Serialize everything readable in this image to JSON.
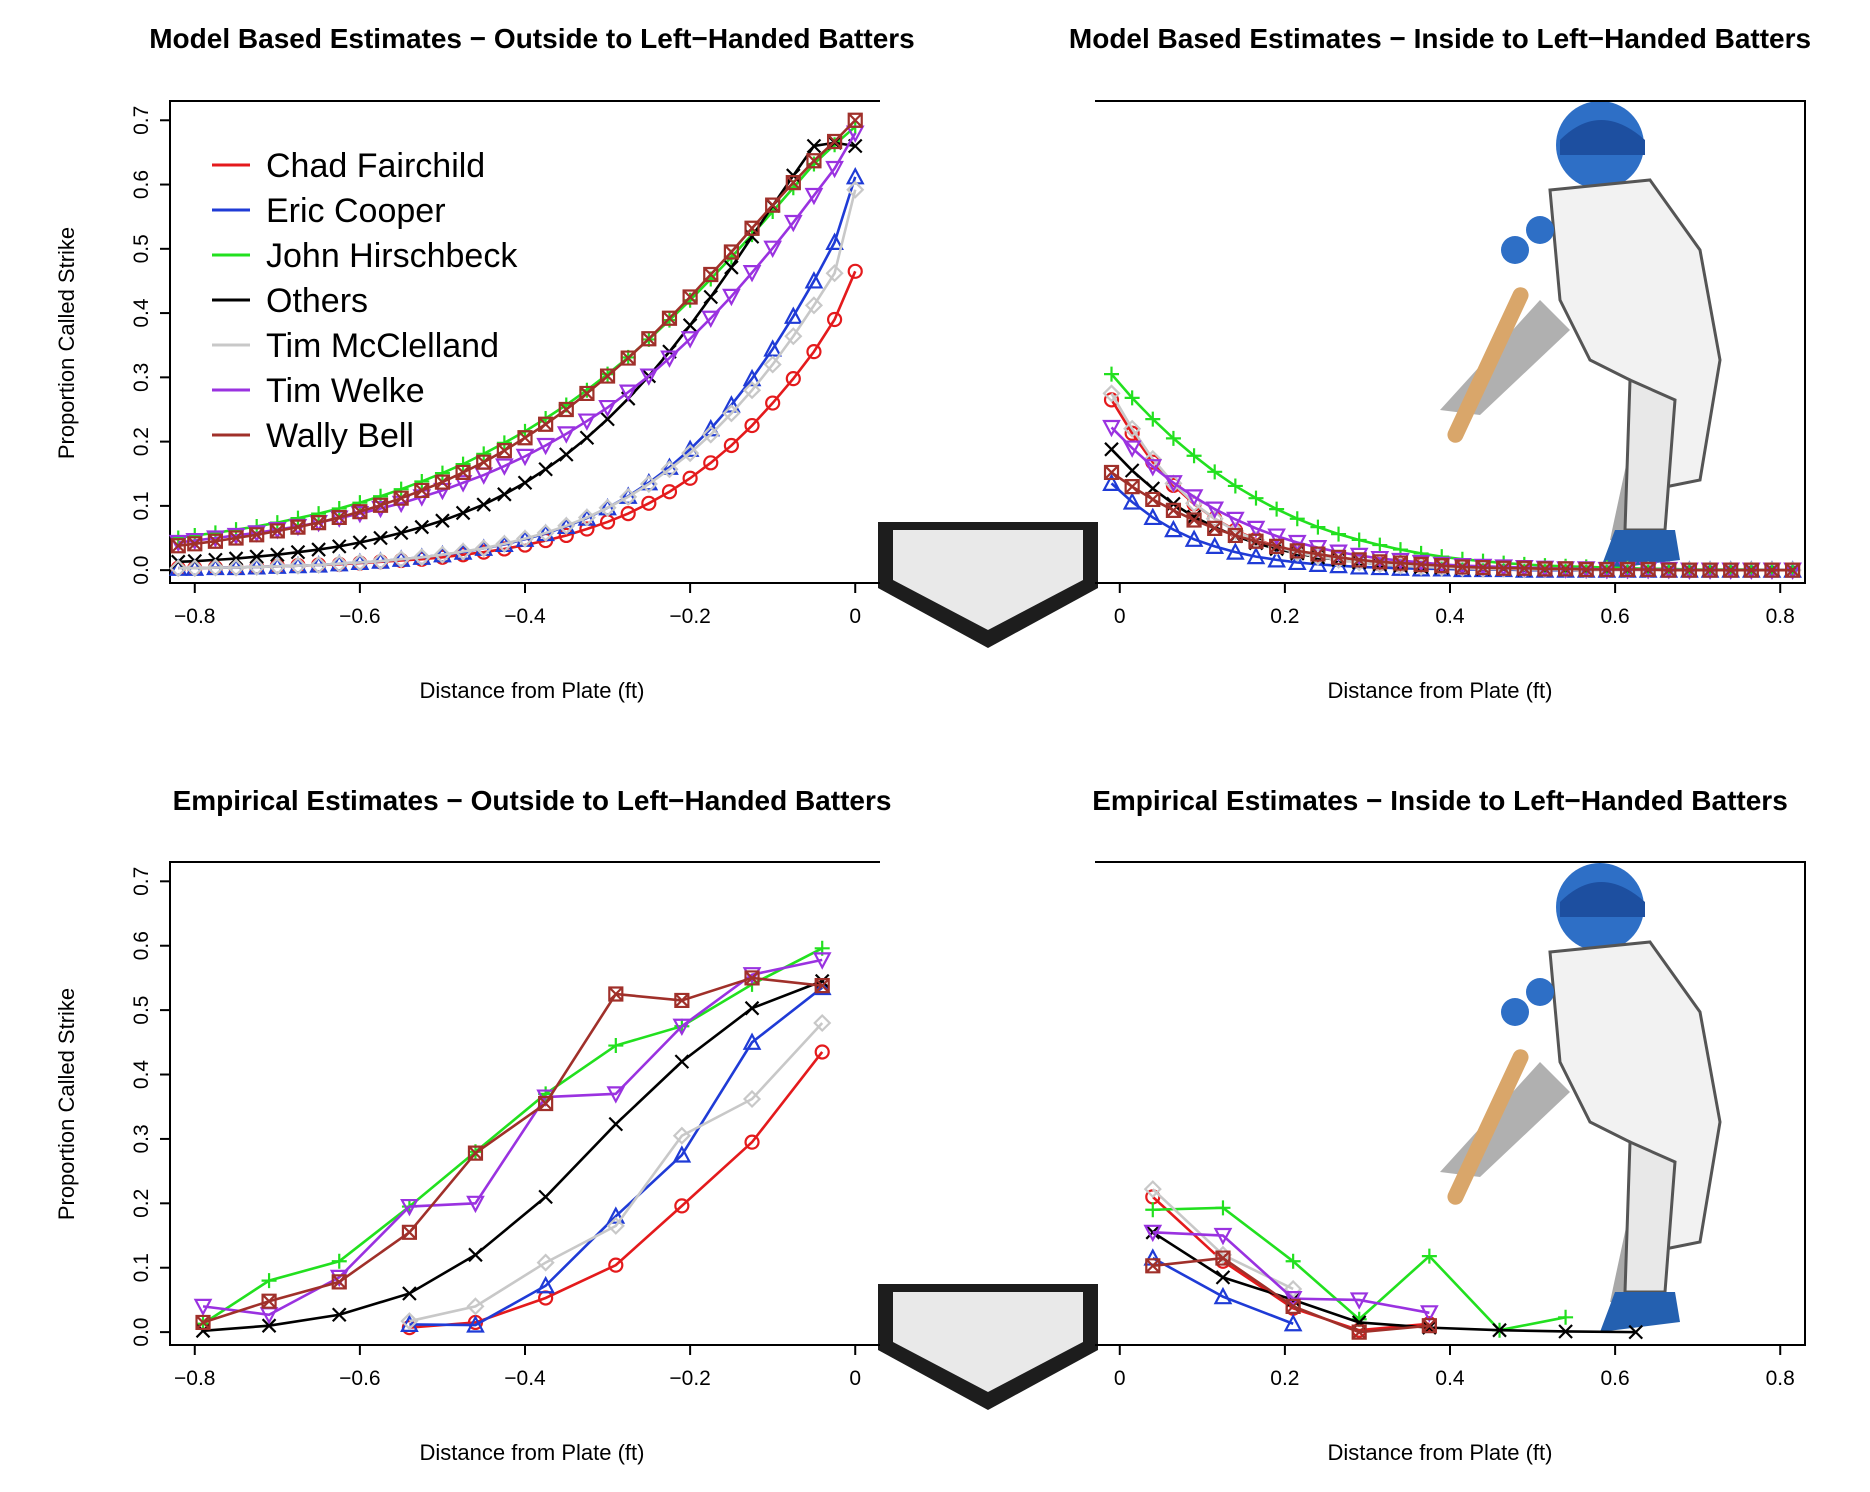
{
  "figure": {
    "colors": {
      "Chad Fairchild": "#e41a1c",
      "Eric Cooper": "#1f3bd6",
      "John Hirschbeck": "#22e01f",
      "Others": "#000000",
      "Tim McClelland": "#c8c8c8",
      "Tim Welke": "#9a32e0",
      "Wally Bell": "#a0302a"
    },
    "markers": {
      "Chad Fairchild": "circle",
      "Eric Cooper": "triangle-up",
      "John Hirschbeck": "plus",
      "Others": "cross",
      "Tim McClelland": "diamond",
      "Tim Welke": "triangle-down",
      "Wally Bell": "square-x"
    },
    "legend_placement": "top-left of first panel",
    "decorations": [
      "home-plate-icon",
      "batter-illustration"
    ]
  },
  "chart_data": [
    {
      "type": "line",
      "title": "Model Based Estimates − Outside to Left−Handed Batters",
      "xlabel": "Distance from Plate (ft)",
      "ylabel": "Proportion Called Strike",
      "xlim": [
        -0.83,
        0.03
      ],
      "ylim": [
        -0.02,
        0.73
      ],
      "xticks": [
        "−0.8",
        "−0.6",
        "−0.4",
        "−0.2",
        "0"
      ],
      "yticks": [
        "0.0",
        "0.1",
        "0.2",
        "0.3",
        "0.4",
        "0.5",
        "0.6",
        "0.7"
      ],
      "legend": [
        "Chad Fairchild",
        "Eric Cooper",
        "John Hirschbeck",
        "Others",
        "Tim McClelland",
        "Tim Welke",
        "Wally Bell"
      ],
      "x": [
        -0.82,
        -0.8,
        -0.775,
        -0.75,
        -0.725,
        -0.7,
        -0.675,
        -0.65,
        -0.625,
        -0.6,
        -0.575,
        -0.55,
        -0.525,
        -0.5,
        -0.475,
        -0.45,
        -0.425,
        -0.4,
        -0.375,
        -0.35,
        -0.325,
        -0.3,
        -0.275,
        -0.25,
        -0.225,
        -0.2,
        -0.175,
        -0.15,
        -0.125,
        -0.1,
        -0.075,
        -0.05,
        -0.025,
        0.0
      ],
      "series": [
        {
          "name": "Chad Fairchild",
          "values": [
            0.003,
            0.003,
            0.004,
            0.004,
            0.005,
            0.006,
            0.007,
            0.008,
            0.009,
            0.011,
            0.013,
            0.015,
            0.017,
            0.02,
            0.024,
            0.028,
            0.033,
            0.039,
            0.046,
            0.054,
            0.064,
            0.075,
            0.088,
            0.104,
            0.122,
            0.143,
            0.167,
            0.194,
            0.225,
            0.26,
            0.298,
            0.34,
            0.39,
            0.465
          ]
        },
        {
          "name": "Eric Cooper",
          "values": [
            0.003,
            0.003,
            0.004,
            0.004,
            0.005,
            0.006,
            0.007,
            0.008,
            0.01,
            0.012,
            0.014,
            0.017,
            0.02,
            0.024,
            0.028,
            0.034,
            0.04,
            0.048,
            0.057,
            0.068,
            0.081,
            0.097,
            0.115,
            0.136,
            0.16,
            0.188,
            0.22,
            0.257,
            0.298,
            0.344,
            0.395,
            0.45,
            0.51,
            0.612
          ]
        },
        {
          "name": "John Hirschbeck",
          "values": [
            0.05,
            0.054,
            0.058,
            0.063,
            0.068,
            0.074,
            0.081,
            0.088,
            0.096,
            0.105,
            0.115,
            0.126,
            0.138,
            0.151,
            0.165,
            0.181,
            0.198,
            0.216,
            0.236,
            0.257,
            0.28,
            0.305,
            0.331,
            0.359,
            0.389,
            0.42,
            0.453,
            0.487,
            0.522,
            0.558,
            0.595,
            0.632,
            0.662,
            0.69
          ]
        },
        {
          "name": "Others",
          "values": [
            0.013,
            0.014,
            0.016,
            0.018,
            0.021,
            0.024,
            0.028,
            0.032,
            0.037,
            0.043,
            0.05,
            0.058,
            0.067,
            0.077,
            0.089,
            0.102,
            0.118,
            0.136,
            0.157,
            0.18,
            0.206,
            0.235,
            0.267,
            0.302,
            0.34,
            0.381,
            0.425,
            0.471,
            0.519,
            0.567,
            0.614,
            0.66,
            0.665,
            0.66
          ]
        },
        {
          "name": "Tim McClelland",
          "values": [
            0.003,
            0.003,
            0.004,
            0.004,
            0.005,
            0.006,
            0.007,
            0.008,
            0.01,
            0.012,
            0.014,
            0.017,
            0.02,
            0.024,
            0.029,
            0.034,
            0.041,
            0.049,
            0.058,
            0.069,
            0.082,
            0.097,
            0.114,
            0.134,
            0.157,
            0.182,
            0.211,
            0.244,
            0.28,
            0.32,
            0.364,
            0.412,
            0.462,
            0.592
          ]
        },
        {
          "name": "Tim Welke",
          "values": [
            0.043,
            0.046,
            0.05,
            0.054,
            0.058,
            0.063,
            0.068,
            0.074,
            0.081,
            0.088,
            0.096,
            0.104,
            0.114,
            0.124,
            0.136,
            0.148,
            0.162,
            0.177,
            0.194,
            0.212,
            0.232,
            0.253,
            0.277,
            0.302,
            0.33,
            0.36,
            0.392,
            0.426,
            0.463,
            0.501,
            0.541,
            0.583,
            0.625,
            0.68
          ]
        },
        {
          "name": "Wally Bell",
          "values": [
            0.038,
            0.041,
            0.045,
            0.05,
            0.055,
            0.061,
            0.067,
            0.074,
            0.082,
            0.091,
            0.101,
            0.112,
            0.124,
            0.137,
            0.152,
            0.168,
            0.186,
            0.206,
            0.227,
            0.25,
            0.275,
            0.302,
            0.33,
            0.36,
            0.392,
            0.425,
            0.46,
            0.495,
            0.532,
            0.568,
            0.603,
            0.637,
            0.667,
            0.7
          ]
        }
      ]
    },
    {
      "type": "line",
      "title": "Model Based Estimates − Inside to Left−Handed Batters",
      "xlabel": "Distance from Plate (ft)",
      "ylabel": "",
      "xlim": [
        -0.03,
        0.83
      ],
      "ylim": [
        -0.02,
        0.73
      ],
      "xticks": [
        "0",
        "0.2",
        "0.4",
        "0.6",
        "0.8"
      ],
      "yticks": [],
      "x": [
        -0.01,
        0.015,
        0.04,
        0.065,
        0.09,
        0.115,
        0.14,
        0.165,
        0.19,
        0.215,
        0.24,
        0.265,
        0.29,
        0.315,
        0.34,
        0.365,
        0.39,
        0.415,
        0.44,
        0.465,
        0.49,
        0.515,
        0.54,
        0.565,
        0.59,
        0.615,
        0.64,
        0.665,
        0.69,
        0.715,
        0.74,
        0.765,
        0.79,
        0.815
      ],
      "series": [
        {
          "name": "Chad Fairchild",
          "values": [
            0.265,
            0.213,
            0.168,
            0.132,
            0.103,
            0.08,
            0.062,
            0.048,
            0.037,
            0.029,
            0.022,
            0.017,
            0.013,
            0.01,
            0.008,
            0.006,
            0.005,
            0.004,
            0.003,
            0.002,
            0.002,
            0.001,
            0.001,
            0.001,
            0.001,
            0.0,
            0.0,
            0.0,
            0.0,
            0.0,
            0.0,
            0.0,
            0.0,
            0.0
          ]
        },
        {
          "name": "Eric Cooper",
          "values": [
            0.135,
            0.106,
            0.082,
            0.063,
            0.048,
            0.037,
            0.028,
            0.021,
            0.016,
            0.012,
            0.009,
            0.007,
            0.005,
            0.004,
            0.003,
            0.002,
            0.002,
            0.001,
            0.001,
            0.001,
            0.0,
            0.0,
            0.0,
            0.0,
            0.0,
            0.0,
            0.0,
            0.0,
            0.0,
            0.0,
            0.0,
            0.0,
            0.0,
            0.0
          ]
        },
        {
          "name": "John Hirschbeck",
          "values": [
            0.305,
            0.268,
            0.235,
            0.205,
            0.178,
            0.153,
            0.131,
            0.112,
            0.095,
            0.08,
            0.067,
            0.056,
            0.047,
            0.039,
            0.032,
            0.026,
            0.021,
            0.017,
            0.014,
            0.011,
            0.009,
            0.007,
            0.006,
            0.005,
            0.004,
            0.003,
            0.002,
            0.002,
            0.001,
            0.001,
            0.001,
            0.001,
            0.0,
            0.0
          ]
        },
        {
          "name": "Others",
          "values": [
            0.188,
            0.155,
            0.127,
            0.103,
            0.083,
            0.067,
            0.053,
            0.042,
            0.033,
            0.026,
            0.02,
            0.016,
            0.012,
            0.009,
            0.007,
            0.005,
            0.004,
            0.003,
            0.002,
            0.002,
            0.001,
            0.001,
            0.001,
            0.0,
            0.0,
            0.0,
            0.0,
            0.0,
            0.0,
            0.0,
            0.0,
            0.0,
            0.0,
            0.0
          ]
        },
        {
          "name": "Tim McClelland",
          "values": [
            0.275,
            0.22,
            0.173,
            0.135,
            0.104,
            0.08,
            0.061,
            0.047,
            0.036,
            0.027,
            0.021,
            0.016,
            0.012,
            0.009,
            0.007,
            0.005,
            0.004,
            0.003,
            0.002,
            0.002,
            0.001,
            0.001,
            0.001,
            0.0,
            0.0,
            0.0,
            0.0,
            0.0,
            0.0,
            0.0,
            0.0,
            0.0,
            0.0,
            0.0
          ]
        },
        {
          "name": "Tim Welke",
          "values": [
            0.222,
            0.19,
            0.161,
            0.136,
            0.114,
            0.095,
            0.079,
            0.065,
            0.053,
            0.043,
            0.035,
            0.028,
            0.023,
            0.018,
            0.015,
            0.012,
            0.009,
            0.007,
            0.006,
            0.005,
            0.004,
            0.003,
            0.002,
            0.002,
            0.001,
            0.001,
            0.001,
            0.001,
            0.0,
            0.0,
            0.0,
            0.0,
            0.0,
            0.0
          ]
        },
        {
          "name": "Wally Bell",
          "values": [
            0.152,
            0.13,
            0.11,
            0.093,
            0.078,
            0.065,
            0.054,
            0.045,
            0.037,
            0.03,
            0.025,
            0.02,
            0.016,
            0.013,
            0.011,
            0.009,
            0.007,
            0.005,
            0.004,
            0.003,
            0.003,
            0.002,
            0.002,
            0.001,
            0.001,
            0.001,
            0.001,
            0.0,
            0.0,
            0.0,
            0.0,
            0.0,
            0.0,
            0.0
          ]
        }
      ]
    },
    {
      "type": "line",
      "title": "Empirical Estimates − Outside to Left−Handed Batters",
      "xlabel": "Distance from Plate (ft)",
      "ylabel": "Proportion Called Strike",
      "xlim": [
        -0.83,
        0.03
      ],
      "ylim": [
        -0.02,
        0.73
      ],
      "xticks": [
        "−0.8",
        "−0.6",
        "−0.4",
        "−0.2",
        "0"
      ],
      "yticks": [
        "0.0",
        "0.1",
        "0.2",
        "0.3",
        "0.4",
        "0.5",
        "0.6",
        "0.7"
      ],
      "series": [
        {
          "name": "Chad Fairchild",
          "x": [
            -0.54,
            -0.46,
            -0.375,
            -0.29,
            -0.21,
            -0.125,
            -0.04
          ],
          "values": [
            0.007,
            0.015,
            0.053,
            0.104,
            0.196,
            0.295,
            0.435
          ]
        },
        {
          "name": "Eric Cooper",
          "x": [
            -0.54,
            -0.46,
            -0.375,
            -0.29,
            -0.21,
            -0.125,
            -0.04
          ],
          "values": [
            0.012,
            0.011,
            0.072,
            0.18,
            0.275,
            0.45,
            0.535
          ]
        },
        {
          "name": "John Hirschbeck",
          "x": [
            -0.79,
            -0.71,
            -0.625,
            -0.54,
            -0.46,
            -0.375,
            -0.29,
            -0.21,
            -0.125,
            -0.04
          ],
          "values": [
            0.013,
            0.08,
            0.11,
            0.195,
            0.28,
            0.37,
            0.445,
            0.475,
            0.54,
            0.596
          ]
        },
        {
          "name": "Others",
          "x": [
            -0.79,
            -0.71,
            -0.625,
            -0.54,
            -0.46,
            -0.375,
            -0.29,
            -0.21,
            -0.125,
            -0.04
          ],
          "values": [
            0.002,
            0.01,
            0.027,
            0.06,
            0.12,
            0.21,
            0.323,
            0.42,
            0.503,
            0.545
          ]
        },
        {
          "name": "Tim McClelland",
          "x": [
            -0.54,
            -0.46,
            -0.375,
            -0.29,
            -0.21,
            -0.125,
            -0.04
          ],
          "values": [
            0.017,
            0.04,
            0.108,
            0.165,
            0.305,
            0.362,
            0.48
          ]
        },
        {
          "name": "Tim Welke",
          "x": [
            -0.79,
            -0.71,
            -0.625,
            -0.54,
            -0.46,
            -0.375,
            -0.29,
            -0.21,
            -0.125,
            -0.04
          ],
          "values": [
            0.04,
            0.027,
            0.085,
            0.195,
            0.2,
            0.365,
            0.37,
            0.475,
            0.555,
            0.578
          ]
        },
        {
          "name": "Wally Bell",
          "x": [
            -0.79,
            -0.71,
            -0.625,
            -0.54,
            -0.46,
            -0.375,
            -0.29,
            -0.21,
            -0.125,
            -0.04
          ],
          "values": [
            0.015,
            0.048,
            0.078,
            0.155,
            0.278,
            0.355,
            0.525,
            0.515,
            0.55,
            0.538
          ]
        }
      ]
    },
    {
      "type": "line",
      "title": "Empirical Estimates − Inside to Left−Handed Batters",
      "xlabel": "Distance from Plate (ft)",
      "ylabel": "",
      "xlim": [
        -0.03,
        0.83
      ],
      "ylim": [
        -0.02,
        0.73
      ],
      "xticks": [
        "0",
        "0.2",
        "0.4",
        "0.6",
        "0.8"
      ],
      "yticks": [],
      "series": [
        {
          "name": "Chad Fairchild",
          "x": [
            0.04,
            0.125,
            0.21,
            0.29,
            0.375
          ],
          "values": [
            0.21,
            0.11,
            0.037,
            0.003,
            0.013
          ]
        },
        {
          "name": "Eric Cooper",
          "x": [
            0.04,
            0.125,
            0.21
          ],
          "values": [
            0.115,
            0.055,
            0.013
          ]
        },
        {
          "name": "John Hirschbeck",
          "x": [
            0.04,
            0.125,
            0.21,
            0.29,
            0.375,
            0.46,
            0.54
          ],
          "values": [
            0.19,
            0.193,
            0.11,
            0.02,
            0.118,
            0.003,
            0.023
          ]
        },
        {
          "name": "Others",
          "x": [
            0.04,
            0.125,
            0.21,
            0.29,
            0.375,
            0.46,
            0.54,
            0.625
          ],
          "values": [
            0.155,
            0.085,
            0.05,
            0.015,
            0.007,
            0.003,
            0.001,
            0.0
          ]
        },
        {
          "name": "Tim McClelland",
          "x": [
            0.04,
            0.125,
            0.21
          ],
          "values": [
            0.222,
            0.12,
            0.067
          ]
        },
        {
          "name": "Tim Welke",
          "x": [
            0.04,
            0.125,
            0.21,
            0.29,
            0.375
          ],
          "values": [
            0.155,
            0.15,
            0.052,
            0.05,
            0.03
          ]
        },
        {
          "name": "Wally Bell",
          "x": [
            0.04,
            0.125,
            0.21,
            0.29,
            0.375
          ],
          "values": [
            0.103,
            0.115,
            0.04,
            0.0,
            0.01
          ]
        }
      ]
    }
  ]
}
